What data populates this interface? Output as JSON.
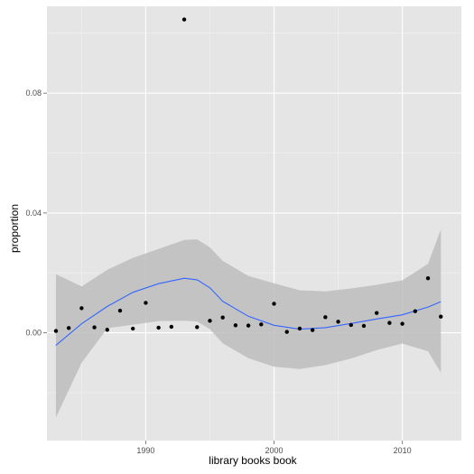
{
  "chart_data": {
    "type": "scatter",
    "title": "",
    "xlabel": "library books book",
    "ylabel": "proportion",
    "xlim": [
      1982.3,
      2014.6
    ],
    "ylim": [
      -0.036,
      0.109
    ],
    "x_ticks": [
      1990,
      2000,
      2010
    ],
    "x_tick_labels": [
      "1990",
      "2000",
      "2010"
    ],
    "y_ticks": [
      0.0,
      0.04,
      0.08
    ],
    "y_tick_labels": [
      "0.00",
      "0.04",
      "0.08"
    ],
    "grid": true,
    "legend": "none",
    "points": {
      "x": [
        1983,
        1984,
        1985,
        1986,
        1987,
        1988,
        1989,
        1990,
        1991,
        1992,
        1993,
        1994,
        1995,
        1996,
        1997,
        1998,
        1999,
        2000,
        2001,
        2002,
        2003,
        2004,
        2005,
        2006,
        2007,
        2008,
        2009,
        2010,
        2011,
        2012,
        2013
      ],
      "y": [
        0.0006,
        0.0016,
        0.0082,
        0.0018,
        0.001,
        0.0074,
        0.0014,
        0.01,
        0.0017,
        0.002,
        0.1046,
        0.0019,
        0.004,
        0.0051,
        0.0025,
        0.0024,
        0.0028,
        0.0097,
        0.0003,
        0.0014,
        0.0009,
        0.0052,
        0.0037,
        0.0026,
        0.0023,
        0.0066,
        0.0033,
        0.003,
        0.0072,
        0.0182,
        0.0054
      ]
    },
    "smooth": {
      "x": [
        1983,
        1985,
        1987,
        1989,
        1991,
        1993,
        1994,
        1995,
        1996,
        1998,
        2000,
        2002,
        2004,
        2006,
        2008,
        2010,
        2012,
        2013
      ],
      "y": [
        -0.0042,
        0.003,
        0.0088,
        0.0135,
        0.0164,
        0.0182,
        0.0177,
        0.015,
        0.0105,
        0.0055,
        0.0025,
        0.0012,
        0.0017,
        0.0031,
        0.0046,
        0.006,
        0.0086,
        0.0104
      ],
      "ci_lower": [
        -0.0283,
        -0.01,
        0.0015,
        0.0027,
        0.0039,
        0.004,
        0.0038,
        0.0012,
        -0.0035,
        -0.0085,
        -0.0113,
        -0.0121,
        -0.0108,
        -0.0086,
        -0.0058,
        -0.0036,
        -0.0062,
        -0.0133
      ],
      "ci_upper": [
        0.0196,
        0.0155,
        0.021,
        0.025,
        0.028,
        0.031,
        0.0312,
        0.0285,
        0.024,
        0.019,
        0.0165,
        0.0142,
        0.0138,
        0.0148,
        0.016,
        0.0175,
        0.023,
        0.0345
      ]
    },
    "colors": {
      "panel": "#e5e5e5",
      "grid_major": "#ffffff",
      "grid_minor": "#f2f2f2",
      "ribbon": "#bdbdbd",
      "smooth_line": "#3366ff",
      "point": "#000000",
      "tick_label": "#4d4d4d"
    }
  }
}
